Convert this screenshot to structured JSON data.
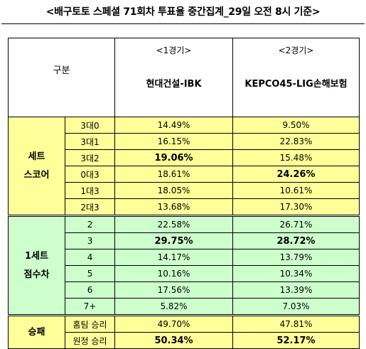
{
  "title": "<배구토토 스페셜 71회차 투표율 중간집계_29일 오전 8시 기준>",
  "header": {
    "gubun": "구분",
    "match1_label": "<1경기>",
    "match1_name": "현대건설-IBK",
    "match2_label": "<2경기>",
    "match2_name": "KEPCO45-LIG손해보험"
  },
  "groups": [
    {
      "name_line1": "세트",
      "name_line2": "스코어",
      "color": "#ffff99",
      "rows": [
        {
          "label": "3대0",
          "m1": "14.49%",
          "m2": "9.50%",
          "m1_bold": false,
          "m2_bold": false
        },
        {
          "label": "3대1",
          "m1": "16.15%",
          "m2": "22.83%",
          "m1_bold": false,
          "m2_bold": false
        },
        {
          "label": "3대2",
          "m1": "19.06%",
          "m2": "15.48%",
          "m1_bold": true,
          "m2_bold": false
        },
        {
          "label": "0대3",
          "m1": "18.61%",
          "m2": "24.26%",
          "m1_bold": false,
          "m2_bold": true
        },
        {
          "label": "1대3",
          "m1": "18.05%",
          "m2": "10.61%",
          "m1_bold": false,
          "m2_bold": false
        },
        {
          "label": "2대3",
          "m1": "13.68%",
          "m2": "17.30%",
          "m1_bold": false,
          "m2_bold": false
        }
      ]
    },
    {
      "name_line1": "1세트",
      "name_line2": "점수차",
      "color": "#ccffcc",
      "rows": [
        {
          "label": "2",
          "m1": "22.58%",
          "m2": "26.71%",
          "m1_bold": false,
          "m2_bold": false
        },
        {
          "label": "3",
          "m1": "29.75%",
          "m2": "28.72%",
          "m1_bold": true,
          "m2_bold": true
        },
        {
          "label": "4",
          "m1": "14.17%",
          "m2": "13.79%",
          "m1_bold": false,
          "m2_bold": false
        },
        {
          "label": "5",
          "m1": "10.16%",
          "m2": "10.34%",
          "m1_bold": false,
          "m2_bold": false
        },
        {
          "label": "6",
          "m1": "17.56%",
          "m2": "13.39%",
          "m1_bold": false,
          "m2_bold": false
        },
        {
          "label": "7+",
          "m1": "5.82%",
          "m2": "7.03%",
          "m1_bold": false,
          "m2_bold": false
        }
      ]
    },
    {
      "name_line1": "승패",
      "name_line2": "",
      "color": "#ffff99",
      "rows": [
        {
          "label": "홈팀 승리",
          "m1": "49.70%",
          "m2": "47.81%",
          "m1_bold": false,
          "m2_bold": false
        },
        {
          "label": "원정 승리",
          "m1": "50.34%",
          "m2": "52.17%",
          "m1_bold": true,
          "m2_bold": true
        }
      ]
    }
  ]
}
